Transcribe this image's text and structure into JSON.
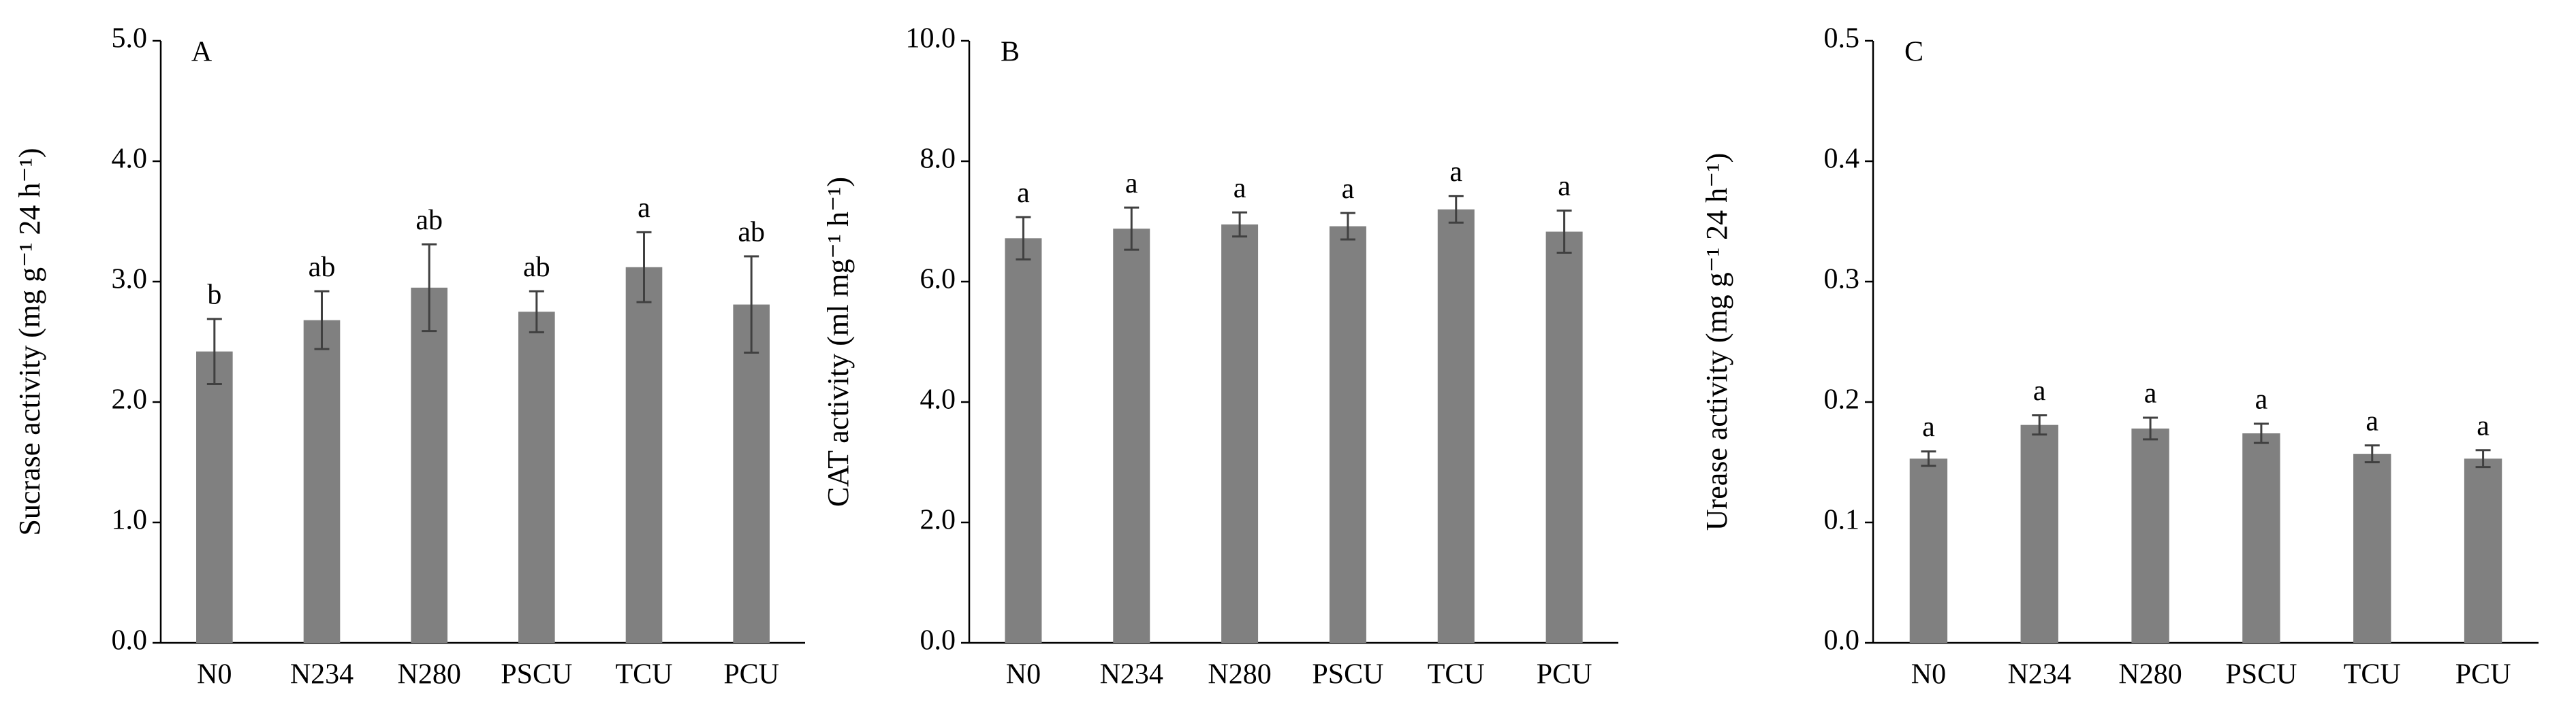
{
  "chart_data": [
    {
      "type": "bar",
      "panel_label": "A",
      "y_label": "Sucrase activity (mg g⁻¹ 24 h⁻¹)",
      "categories": [
        "N0",
        "N234",
        "N280",
        "PSCU",
        "TCU",
        "PCU"
      ],
      "values": [
        2.42,
        2.68,
        2.95,
        2.75,
        3.12,
        2.81
      ],
      "errors": [
        0.27,
        0.24,
        0.36,
        0.17,
        0.29,
        0.4
      ],
      "letters": [
        "b",
        "ab",
        "ab",
        "ab",
        "a",
        "ab"
      ],
      "color": "#808080",
      "ylim": [
        0,
        5
      ],
      "yticks": [
        {
          "value": 0,
          "label": "0.0"
        },
        {
          "value": 1,
          "label": "1.0"
        },
        {
          "value": 2,
          "label": "2.0"
        },
        {
          "value": 3,
          "label": "3.0"
        },
        {
          "value": 4,
          "label": "4.0"
        },
        {
          "value": 5,
          "label": "5.0"
        }
      ]
    },
    {
      "type": "bar",
      "panel_label": "B",
      "y_label": "CAT activity (ml mg⁻¹ h⁻¹)",
      "categories": [
        "N0",
        "N234",
        "N280",
        "PSCU",
        "TCU",
        "PCU"
      ],
      "values": [
        6.72,
        6.88,
        6.95,
        6.92,
        7.2,
        6.83
      ],
      "errors": [
        0.35,
        0.35,
        0.2,
        0.22,
        0.22,
        0.35
      ],
      "letters": [
        "a",
        "a",
        "a",
        "a",
        "a",
        "a"
      ],
      "color": "#808080",
      "ylim": [
        0,
        10
      ],
      "yticks": [
        {
          "value": 0,
          "label": "0.0"
        },
        {
          "value": 2,
          "label": "2.0"
        },
        {
          "value": 4,
          "label": "4.0"
        },
        {
          "value": 6,
          "label": "6.0"
        },
        {
          "value": 8,
          "label": "8.0"
        },
        {
          "value": 10,
          "label": "10.0"
        }
      ]
    },
    {
      "type": "bar",
      "panel_label": "C",
      "y_label": "Urease activity (mg g⁻¹ 24 h⁻¹)",
      "categories": [
        "N0",
        "N234",
        "N280",
        "PSCU",
        "TCU",
        "PCU"
      ],
      "values": [
        0.153,
        0.181,
        0.178,
        0.174,
        0.157,
        0.153
      ],
      "errors": [
        0.006,
        0.008,
        0.009,
        0.008,
        0.007,
        0.007
      ],
      "letters": [
        "a",
        "a",
        "a",
        "a",
        "a",
        "a"
      ],
      "color": "#808080",
      "ylim": [
        0,
        0.5
      ],
      "yticks": [
        {
          "value": 0,
          "label": "0.0"
        },
        0.1,
        0.2,
        0.3,
        0.4,
        0.5
      ]
    }
  ]
}
